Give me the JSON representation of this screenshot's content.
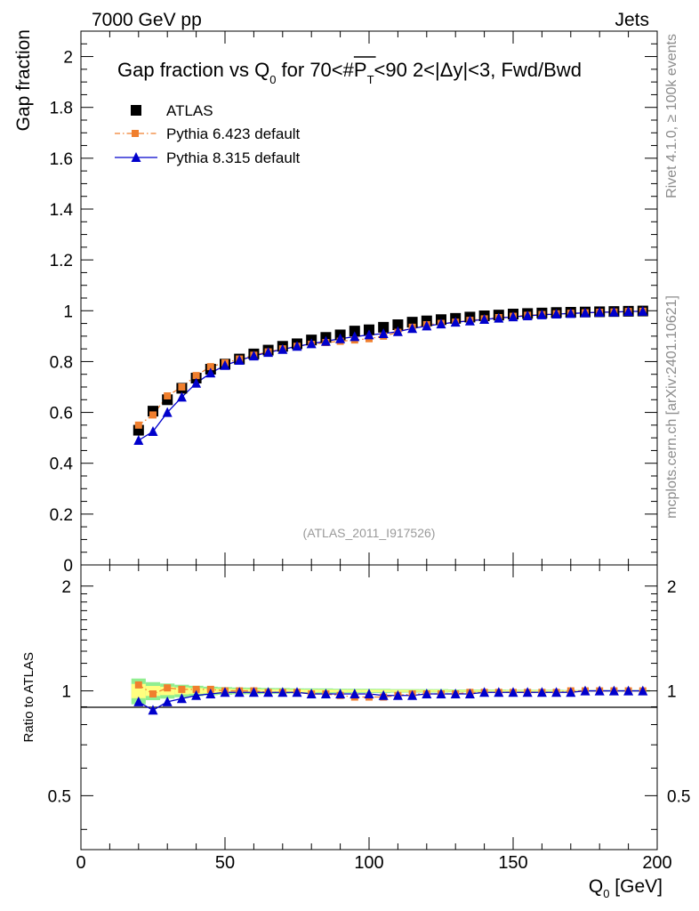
{
  "header": {
    "left": "7000 GeV pp",
    "right": "Jets"
  },
  "side_labels": {
    "rivet": "Rivet 4.1.0, ≥ 100k events",
    "mcplots": "mcplots.cern.ch [arXiv:2401.10621]"
  },
  "analysis_tag": "(ATLAS_2011_I917526)",
  "chart_data": {
    "type": "scatter",
    "title": "Gap fraction vs Q0 for 70<#PT<90  2<|Δy|<3, Fwd/Bwd",
    "title_parts": {
      "main": "Gap fraction vs Q",
      "q_sub": "0",
      "mid": " for 70<#",
      "pt": "P",
      "pt_sub": "T",
      "tail": "<90  2<|Δy|<3, Fwd/Bwd"
    },
    "xlabel": "Q0 [GeV]",
    "xlabel_parts": {
      "main": "Q",
      "sub": "0",
      "unit": " [GeV]"
    },
    "ylabel": "Gap fraction",
    "ratio_ylabel": "Ratio to ATLAS",
    "xlim": [
      0,
      200
    ],
    "ylim": [
      0,
      2.1
    ],
    "ratio_ylim": [
      0.35,
      2.3
    ],
    "x_ticks": [
      0,
      50,
      100,
      150,
      200
    ],
    "x_tick_labels": [
      "0",
      "50",
      "100",
      "150",
      "200"
    ],
    "y_ticks": [
      0,
      0.2,
      0.4,
      0.6,
      0.8,
      1,
      1.2,
      1.4,
      1.6,
      1.8,
      2
    ],
    "y_tick_labels": [
      "0",
      "0.2",
      "0.4",
      "0.6",
      "0.8",
      "1",
      "1.2",
      "1.4",
      "1.6",
      "1.8",
      "2"
    ],
    "ratio_y_ticks": [
      0.5,
      1,
      2
    ],
    "ratio_y_tick_labels": [
      "0.5",
      "1",
      "2"
    ],
    "legend_position": "top-left",
    "x": [
      20,
      25,
      30,
      35,
      40,
      45,
      50,
      55,
      60,
      65,
      70,
      75,
      80,
      85,
      90,
      95,
      100,
      105,
      110,
      115,
      120,
      125,
      130,
      135,
      140,
      145,
      150,
      155,
      160,
      165,
      170,
      175,
      180,
      185,
      190,
      195
    ],
    "series": [
      {
        "name": "ATLAS",
        "color": "#000000",
        "marker": "square",
        "values": [
          0.53,
          0.605,
          0.65,
          0.695,
          0.735,
          0.77,
          0.79,
          0.81,
          0.83,
          0.845,
          0.86,
          0.87,
          0.885,
          0.895,
          0.905,
          0.92,
          0.925,
          0.935,
          0.945,
          0.955,
          0.96,
          0.965,
          0.97,
          0.975,
          0.98,
          0.983,
          0.987,
          0.989,
          0.991,
          0.993,
          0.994,
          0.995,
          0.996,
          0.997,
          0.998,
          0.999
        ],
        "err": [
          0.025,
          0.02,
          0.018,
          0.016,
          0.014,
          0.012,
          0.011,
          0.01,
          0.01,
          0.009,
          0.009,
          0.008,
          0.008,
          0.008,
          0.007,
          0.007,
          0.007,
          0.007,
          0.006,
          0.006,
          0.006,
          0.006,
          0.005,
          0.005,
          0.005,
          0.005,
          0.004,
          0.004,
          0.004,
          0.004,
          0.003,
          0.003,
          0.003,
          0.003,
          0.003,
          0.003
        ]
      },
      {
        "name": "Pythia 6.423 default",
        "color": "#f07f2e",
        "marker": "square",
        "line": "dashdot",
        "values": [
          0.55,
          0.59,
          0.665,
          0.7,
          0.745,
          0.78,
          0.795,
          0.81,
          0.825,
          0.838,
          0.85,
          0.86,
          0.868,
          0.875,
          0.88,
          0.885,
          0.89,
          0.9,
          0.915,
          0.935,
          0.945,
          0.95,
          0.955,
          0.962,
          0.968,
          0.973,
          0.978,
          0.982,
          0.985,
          0.988,
          0.99,
          0.992,
          0.994,
          0.995,
          0.997,
          0.998
        ],
        "ratio": [
          1.04,
          0.98,
          1.02,
          1.01,
          1.01,
          1.01,
          1.0,
          1.0,
          1.0,
          0.99,
          0.99,
          0.99,
          0.98,
          0.98,
          0.97,
          0.96,
          0.96,
          0.96,
          0.97,
          0.98,
          0.98,
          0.98,
          0.98,
          0.99,
          0.99,
          0.99,
          0.99,
          0.99,
          0.99,
          0.99,
          1.0,
          1.0,
          1.0,
          1.0,
          1.0,
          1.0
        ]
      },
      {
        "name": "Pythia 8.315 default",
        "color": "#0000cc",
        "marker": "triangle",
        "line": "solid",
        "values": [
          0.49,
          0.525,
          0.6,
          0.66,
          0.715,
          0.755,
          0.785,
          0.805,
          0.822,
          0.836,
          0.848,
          0.86,
          0.87,
          0.88,
          0.89,
          0.898,
          0.905,
          0.91,
          0.918,
          0.93,
          0.94,
          0.948,
          0.955,
          0.96,
          0.966,
          0.971,
          0.976,
          0.98,
          0.984,
          0.987,
          0.989,
          0.992,
          0.994,
          0.995,
          0.997,
          0.998
        ],
        "ratio": [
          0.93,
          0.88,
          0.93,
          0.95,
          0.97,
          0.98,
          0.99,
          0.99,
          0.99,
          0.99,
          0.99,
          0.99,
          0.98,
          0.98,
          0.98,
          0.98,
          0.98,
          0.97,
          0.97,
          0.97,
          0.98,
          0.98,
          0.98,
          0.98,
          0.99,
          0.99,
          0.99,
          0.99,
          0.99,
          0.99,
          0.99,
          1.0,
          1.0,
          1.0,
          1.0,
          1.0
        ]
      }
    ],
    "ratio_band": {
      "inner_color": "#ffff80",
      "outer_color": "#90ee90"
    }
  }
}
